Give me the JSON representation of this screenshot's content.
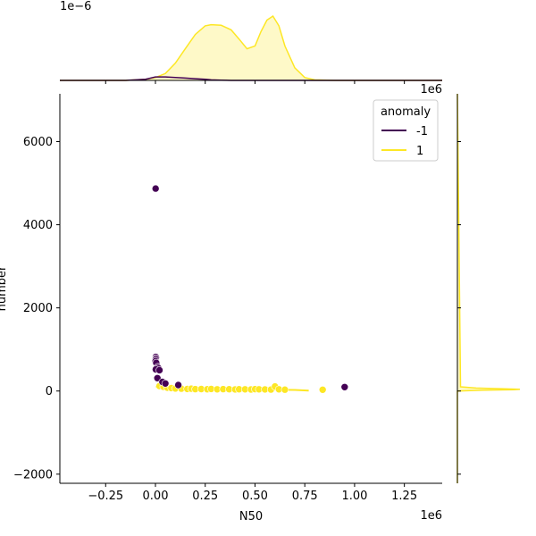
{
  "chart_data": {
    "type": "scatter",
    "title": "",
    "xlabel": "N50",
    "ylabel": "number",
    "x_scale_label": "1e6",
    "x_ticks": [
      -0.25,
      0.0,
      0.25,
      0.5,
      0.75,
      1.0,
      1.25
    ],
    "x_tick_labels": [
      "−0.25",
      "0.00",
      "0.25",
      "0.50",
      "0.75",
      "1.00",
      "1.25"
    ],
    "y_ticks": [
      -2000,
      0,
      2000,
      4000,
      6000
    ],
    "y_tick_labels": [
      "−2000",
      "0",
      "2000",
      "4000",
      "6000"
    ],
    "xlim": [
      -0.48,
      1.44
    ],
    "ylim": [
      -2220,
      7150
    ],
    "top_marginal_scale_label": "1e−6",
    "right_marginal_scale_label": "1e6",
    "legend": {
      "title": "anomaly",
      "placement": "top-right",
      "entries": [
        {
          "label": "-1",
          "color": "#440154"
        },
        {
          "label": "1",
          "color": "#fde725"
        }
      ]
    },
    "series": [
      {
        "name": "-1",
        "color": "#440154",
        "points": [
          [
            0.001,
            4870
          ],
          [
            0.002,
            820
          ],
          [
            0.003,
            790
          ],
          [
            0.002,
            760
          ],
          [
            0.001,
            720
          ],
          [
            0.004,
            680
          ],
          [
            0.012,
            580
          ],
          [
            0.015,
            550
          ],
          [
            0.002,
            520
          ],
          [
            0.02,
            500
          ],
          [
            0.01,
            310
          ],
          [
            0.035,
            220
          ],
          [
            0.05,
            180
          ],
          [
            0.115,
            145
          ],
          [
            0.95,
            95
          ]
        ]
      },
      {
        "name": "1",
        "color": "#fde725",
        "points": [
          [
            0.02,
            120
          ],
          [
            0.04,
            100
          ],
          [
            0.06,
            80
          ],
          [
            0.08,
            70
          ],
          [
            0.1,
            60
          ],
          [
            0.13,
            55
          ],
          [
            0.16,
            50
          ],
          [
            0.18,
            55
          ],
          [
            0.2,
            45
          ],
          [
            0.23,
            48
          ],
          [
            0.26,
            42
          ],
          [
            0.28,
            50
          ],
          [
            0.31,
            40
          ],
          [
            0.34,
            45
          ],
          [
            0.37,
            42
          ],
          [
            0.4,
            38
          ],
          [
            0.42,
            44
          ],
          [
            0.45,
            40
          ],
          [
            0.48,
            36
          ],
          [
            0.5,
            45
          ],
          [
            0.52,
            40
          ],
          [
            0.55,
            38
          ],
          [
            0.58,
            35
          ],
          [
            0.6,
            110
          ],
          [
            0.62,
            40
          ],
          [
            0.65,
            32
          ],
          [
            0.84,
            30
          ]
        ],
        "trend_x": [
          0.0,
          0.05,
          0.15,
          0.3,
          0.45,
          0.6,
          0.7,
          0.77
        ],
        "trend_y": [
          110,
          80,
          55,
          45,
          38,
          32,
          25,
          10
        ]
      }
    ],
    "top_marginal": {
      "x": [
        -0.48,
        -0.3,
        -0.15,
        -0.05,
        0.0,
        0.05,
        0.1,
        0.15,
        0.2,
        0.25,
        0.28,
        0.33,
        0.38,
        0.42,
        0.46,
        0.5,
        0.53,
        0.56,
        0.59,
        0.62,
        0.65,
        0.7,
        0.75,
        0.8,
        0.9,
        1.0,
        1.44
      ],
      "y1": [
        0,
        0.0,
        0.0,
        0.02,
        0.05,
        0.12,
        0.3,
        0.55,
        0.8,
        0.95,
        0.97,
        0.96,
        0.88,
        0.72,
        0.55,
        0.6,
        0.85,
        1.05,
        1.12,
        0.95,
        0.6,
        0.22,
        0.05,
        0.01,
        0.0,
        0.0,
        0
      ],
      "y2": [
        0,
        0.0,
        0.0,
        0.02,
        0.06,
        0.06,
        0.05,
        0.04,
        0.03,
        0.02,
        0.01,
        0.005,
        0.0,
        0.0,
        0.0,
        0.0,
        0.0,
        0.0,
        0.0,
        0.0,
        0.0,
        0.0,
        0.0,
        0.0,
        0.0,
        0.0,
        0
      ]
    },
    "right_marginal": {
      "y": [
        -2220,
        0,
        20,
        30,
        40,
        55,
        70,
        100,
        7150
      ],
      "x1": [
        0,
        0,
        0.4,
        0.9,
        1.0,
        0.7,
        0.3,
        0.05,
        0
      ]
    }
  }
}
